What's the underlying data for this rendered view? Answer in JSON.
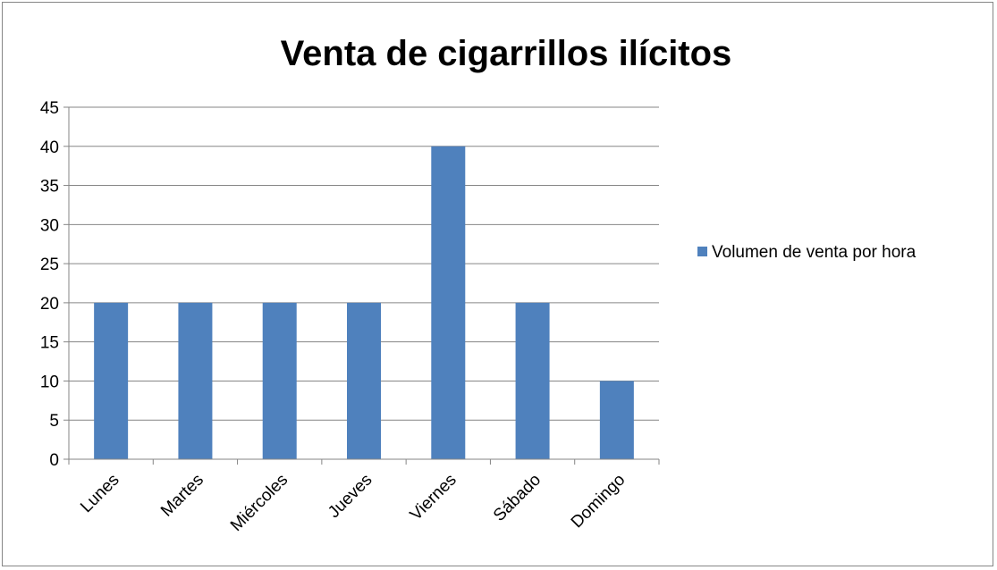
{
  "chart_data": {
    "type": "bar",
    "title": "Venta de cigarrillos ilícitos",
    "categories": [
      "Lunes",
      "Martes",
      "Miércoles",
      "Jueves",
      "Viernes",
      "Sábado",
      "Domingo"
    ],
    "series": [
      {
        "name": "Volumen de venta por hora",
        "values": [
          20,
          20,
          20,
          20,
          40,
          20,
          10
        ],
        "color": "#4f81bd"
      }
    ],
    "ylim": [
      0,
      45
    ],
    "yticks": [
      0,
      5,
      10,
      15,
      20,
      25,
      30,
      35,
      40,
      45
    ],
    "grid": true,
    "legend_position": "right"
  }
}
